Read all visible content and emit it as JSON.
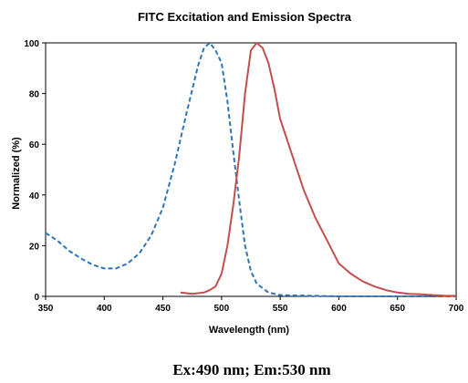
{
  "chart_data": {
    "type": "line",
    "title": "FITC Excitation and Emission Spectra",
    "xlabel": "Wavelength (nm)",
    "ylabel": "Normalized (%)",
    "xlim": [
      350,
      700
    ],
    "ylim": [
      0,
      100
    ],
    "xticks": [
      350,
      400,
      450,
      500,
      550,
      600,
      650,
      700
    ],
    "yticks": [
      0,
      20,
      40,
      60,
      80,
      100
    ],
    "grid": false,
    "legend": "none",
    "series": [
      {
        "color": "#2e75b6",
        "style": "dashed",
        "x": [
          350,
          360,
          370,
          380,
          390,
          400,
          410,
          420,
          430,
          440,
          450,
          460,
          470,
          480,
          485,
          490,
          495,
          500,
          505,
          510,
          515,
          520,
          525,
          530,
          540,
          550,
          600,
          650,
          700
        ],
        "y": [
          25,
          22,
          18,
          15,
          12.5,
          11,
          11,
          13,
          17,
          24,
          35,
          52,
          72,
          91,
          98,
          100,
          97,
          92,
          77,
          57,
          38,
          20,
          10,
          5,
          1.5,
          0.5,
          0,
          0,
          0
        ]
      },
      {
        "color": "#c0504d",
        "style": "solid",
        "x": [
          465,
          475,
          485,
          490,
          495,
          500,
          505,
          510,
          515,
          520,
          525,
          530,
          535,
          540,
          545,
          550,
          560,
          570,
          580,
          590,
          600,
          610,
          620,
          630,
          640,
          650,
          660,
          670,
          680,
          690,
          700
        ],
        "y": [
          1.5,
          1,
          1.5,
          2.5,
          4,
          9,
          20,
          36,
          55,
          80,
          97,
          100,
          98,
          92,
          82,
          70,
          56,
          42,
          31,
          22,
          13,
          9,
          6,
          4,
          2.5,
          1.5,
          1,
          0.8,
          0.5,
          0.3,
          0.2
        ]
      }
    ],
    "caption": "Ex:490 nm; Em:530 nm"
  }
}
